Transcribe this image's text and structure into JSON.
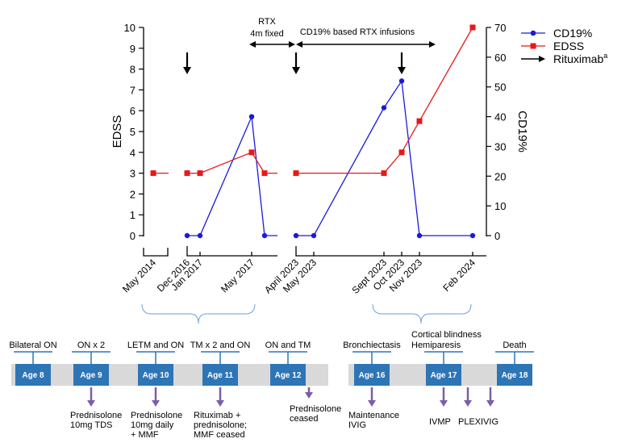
{
  "chart_data": {
    "type": "line",
    "x_categories": [
      "May 2014",
      "Dec 2016",
      "Jan 2017",
      "May 2017",
      "April 2023",
      "May 2023",
      "Sept 2023",
      "Oct 2023",
      "Nov 2023",
      "Feb 2024"
    ],
    "left_axis": {
      "label": "EDSS",
      "min": 0,
      "max": 10,
      "ticks": [
        "0",
        "1",
        "2",
        "3",
        "4",
        "5",
        "6",
        "7",
        "8",
        "9",
        "10"
      ]
    },
    "right_axis": {
      "label": "CD19%",
      "min": 0,
      "max": 70,
      "ticks": [
        "0",
        "10",
        "20",
        "30",
        "40",
        "50",
        "60",
        "70"
      ]
    },
    "series": [
      {
        "name": "CD19%",
        "axis": "right",
        "color": "#1a1adb",
        "marker": "circle",
        "segments": [
          [
            {
              "x": 1.0,
              "y": 0
            },
            {
              "x": 1.3,
              "y": 0
            },
            {
              "x": 2.5,
              "y": 40
            },
            {
              "x": 2.75,
              "y": 0
            },
            {
              "x": 3.0,
              "y": 0
            }
          ],
          [
            {
              "x": 4.0,
              "y": 0
            },
            {
              "x": 4.35,
              "y": 0
            },
            {
              "x": 5.6,
              "y": 43
            },
            {
              "x": 6.0,
              "y": 52
            },
            {
              "x": 6.35,
              "y": 0
            },
            {
              "x": 7.4,
              "y": 0
            }
          ]
        ]
      },
      {
        "name": "EDSS",
        "axis": "left",
        "color": "#e81818",
        "marker": "square",
        "segments": [
          [
            {
              "x": 0.0,
              "y": 3
            },
            {
              "x": 0.35,
              "y": 3
            }
          ],
          [
            {
              "x": 1.0,
              "y": 3
            },
            {
              "x": 1.3,
              "y": 3
            },
            {
              "x": 2.5,
              "y": 4
            },
            {
              "x": 2.75,
              "y": 3
            },
            {
              "x": 3.0,
              "y": 3
            }
          ],
          [
            {
              "x": 4.0,
              "y": 3
            },
            {
              "x": 5.6,
              "y": 3
            },
            {
              "x": 6.0,
              "y": 4
            },
            {
              "x": 6.35,
              "y": 5.5
            },
            {
              "x": 7.4,
              "y": 10
            }
          ]
        ]
      }
    ],
    "legend": [
      {
        "label": "CD19%",
        "type": "circle-line",
        "color": "#1a1adb"
      },
      {
        "label": "EDSS",
        "type": "square-line",
        "color": "#e81818"
      },
      {
        "label": "Rituximab",
        "superscript": "a",
        "type": "arrow",
        "color": "#000000"
      }
    ],
    "rituximab_arrows": [
      1.0,
      4.0,
      6.0
    ],
    "annotations": [
      {
        "text_lines": [
          "RTX",
          "4m fixed"
        ],
        "from": 2.75,
        "to": 4.0
      },
      {
        "text_lines": [
          "CD19% based RTX infusions"
        ],
        "from": 4.0,
        "to": 6.6
      }
    ],
    "timeline": {
      "events": [
        {
          "label": "Bilateral ON",
          "age": "Age 8"
        },
        {
          "label": "ON x 2",
          "age": "Age 9",
          "treatment": [
            "Prednisolone",
            "10mg TDS"
          ]
        },
        {
          "label": "LETM and ON",
          "age": "Age 10",
          "treatment": [
            "Prednisolone",
            "10mg daily",
            "+ MMF"
          ]
        },
        {
          "label": "TM x 2 and ON",
          "age": "Age 11",
          "treatment": [
            "Rituximab +",
            "prednisolone;",
            "MMF ceased"
          ]
        },
        {
          "label": "ON and TM",
          "age": "Age 12",
          "treatment": [
            "Prednisolone",
            "ceased"
          ]
        },
        {
          "label": "Bronchiectasis",
          "age": "Age 16",
          "treatment": [
            "Maintenance",
            "IVIG"
          ]
        },
        {
          "label": "Cortical blindness",
          "label2": "Hemiparesis",
          "age": "Age 17",
          "treatment": [
            "IVMP"
          ]
        },
        {
          "label": "Death",
          "age": "Age 18"
        }
      ],
      "extra_treatments": [
        {
          "text": "PLEX"
        },
        {
          "text": "IVIG"
        }
      ]
    }
  },
  "colors": {
    "cd19": "#1a1adb",
    "edss": "#e81818",
    "age_box": "#2e75b6",
    "age_bar": "#d9d9d9",
    "treatment_arrow": "#7b5ea7",
    "bracket": "#6f9fd8"
  }
}
